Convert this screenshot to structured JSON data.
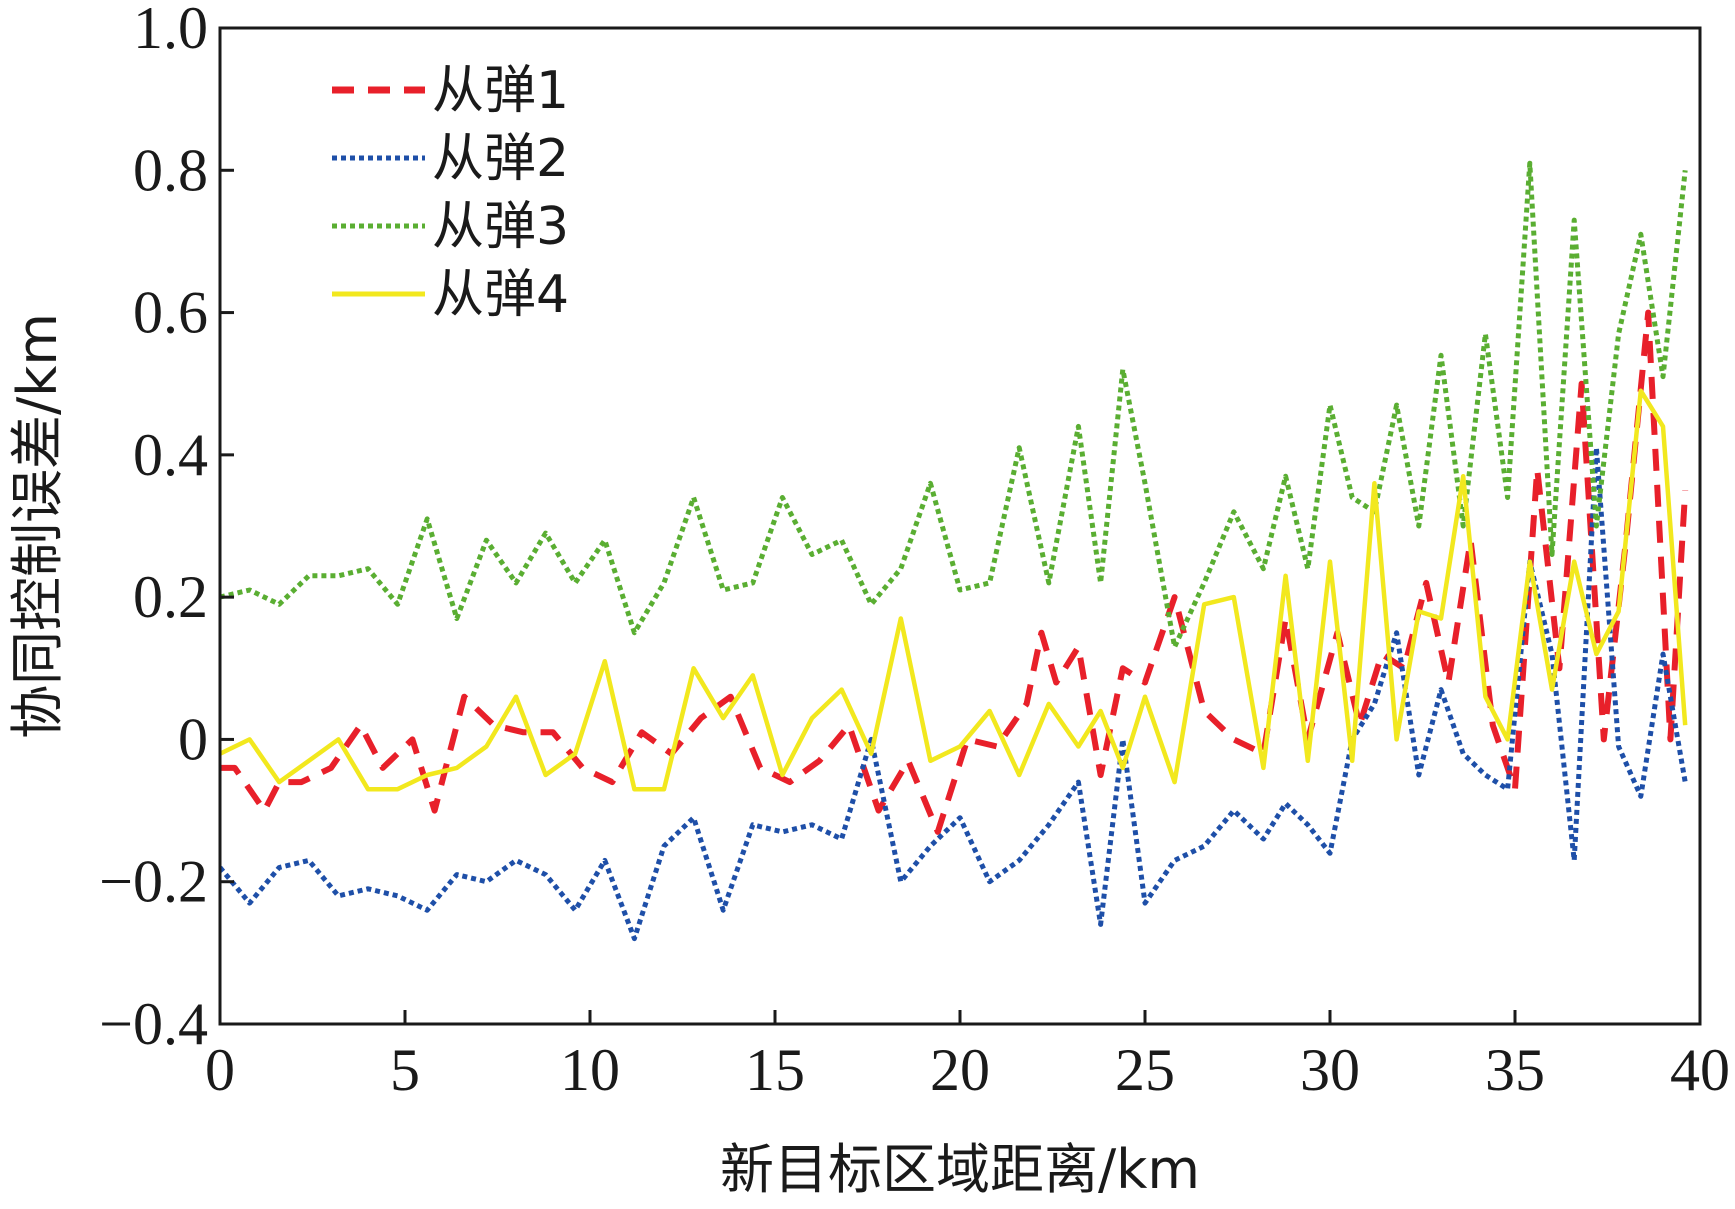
{
  "chart_data": {
    "type": "line",
    "xlabel": "新目标区域距离/km",
    "ylabel": "协同控制误差/km",
    "xlim": [
      0,
      40
    ],
    "ylim": [
      -0.4,
      1.0
    ],
    "xticks": [
      0,
      5,
      10,
      15,
      20,
      25,
      30,
      35,
      40
    ],
    "xtick_labels": [
      "0",
      "5",
      "10",
      "15",
      "20",
      "25",
      "30",
      "35",
      "40"
    ],
    "yticks": [
      -0.4,
      -0.2,
      0,
      0.2,
      0.4,
      0.6,
      0.8,
      1.0
    ],
    "ytick_labels": [
      "−0.4",
      "−0.2",
      "0",
      "0.2",
      "0.4",
      "0.6",
      "0.8",
      "1.0"
    ],
    "grid": false,
    "legend_position": "top-left",
    "series": [
      {
        "name": "从弹1",
        "color": "#e8202a",
        "style": "dashed",
        "x": [
          0,
          0.4,
          1.2,
          1.6,
          2.2,
          3,
          3.8,
          4.4,
          5.2,
          5.8,
          6.6,
          7.4,
          8.2,
          9,
          9.8,
          10.6,
          11.4,
          12.2,
          13,
          13.8,
          14.6,
          15.4,
          16.2,
          17,
          17.8,
          18.6,
          19.4,
          20.2,
          21,
          21.8,
          22.2,
          22.6,
          23.2,
          23.8,
          24.4,
          25,
          25.8,
          26.6,
          27.4,
          28.2,
          28.8,
          29.4,
          30.2,
          30.8,
          31.4,
          32,
          32.6,
          33.2,
          33.8,
          34.4,
          35,
          35.6,
          36.2,
          36.8,
          37.4,
          38,
          38.6,
          39.2,
          39.6
        ],
        "y": [
          -0.04,
          -0.04,
          -0.1,
          -0.06,
          -0.06,
          -0.04,
          0.02,
          -0.04,
          0,
          -0.1,
          0.06,
          0.02,
          0.01,
          0.01,
          -0.04,
          -0.06,
          0.01,
          -0.02,
          0.03,
          0.06,
          -0.04,
          -0.06,
          -0.03,
          0.02,
          -0.1,
          -0.03,
          -0.13,
          0.0,
          -0.01,
          0.05,
          0.15,
          0.08,
          0.13,
          -0.05,
          0.1,
          0.08,
          0.2,
          0.04,
          0.0,
          -0.02,
          0.17,
          0.0,
          0.15,
          0.02,
          0.12,
          0.1,
          0.22,
          0.08,
          0.28,
          0.02,
          -0.07,
          0.38,
          0.1,
          0.5,
          0.0,
          0.28,
          0.6,
          0.0,
          0.35
        ]
      },
      {
        "name": "从弹2",
        "color": "#1e4fa8",
        "style": "dotted",
        "x": [
          0,
          0.8,
          1.6,
          2.4,
          3.2,
          4,
          4.8,
          5.6,
          6.4,
          7.2,
          8,
          8.8,
          9.6,
          10.4,
          11.2,
          12,
          12.8,
          13.6,
          14.4,
          15.2,
          16,
          16.8,
          17.6,
          18.4,
          19.2,
          20,
          20.8,
          21.6,
          22.4,
          23.2,
          23.8,
          24.4,
          25,
          25.8,
          26.6,
          27.4,
          28.2,
          28.8,
          29.4,
          30,
          30.6,
          31.2,
          31.8,
          32.4,
          33,
          33.6,
          34.2,
          34.8,
          35.4,
          36,
          36.6,
          37.2,
          37.8,
          38.4,
          39,
          39.6
        ],
        "y": [
          -0.18,
          -0.23,
          -0.18,
          -0.17,
          -0.22,
          -0.21,
          -0.22,
          -0.24,
          -0.19,
          -0.2,
          -0.17,
          -0.19,
          -0.24,
          -0.17,
          -0.28,
          -0.15,
          -0.11,
          -0.24,
          -0.12,
          -0.13,
          -0.12,
          -0.14,
          0.0,
          -0.2,
          -0.15,
          -0.11,
          -0.2,
          -0.17,
          -0.12,
          -0.06,
          -0.26,
          0.0,
          -0.23,
          -0.17,
          -0.15,
          -0.1,
          -0.14,
          -0.09,
          -0.12,
          -0.16,
          0.0,
          0.05,
          0.15,
          -0.05,
          0.07,
          -0.02,
          -0.05,
          -0.07,
          0.25,
          0.12,
          -0.17,
          0.41,
          -0.01,
          -0.08,
          0.12,
          -0.06
        ]
      },
      {
        "name": "从弹3",
        "color": "#5aae32",
        "style": "dotted",
        "x": [
          0,
          0.8,
          1.6,
          2.4,
          3.2,
          4,
          4.8,
          5.6,
          6.4,
          7.2,
          8,
          8.8,
          9.6,
          10.4,
          11.2,
          12,
          12.8,
          13.6,
          14.4,
          15.2,
          16,
          16.8,
          17.6,
          18.4,
          19.2,
          20,
          20.8,
          21.6,
          22.4,
          23.2,
          23.8,
          24.4,
          25,
          25.8,
          26.6,
          27.4,
          28.2,
          28.8,
          29.4,
          30,
          30.6,
          31.2,
          31.8,
          32.4,
          33,
          33.6,
          34.2,
          34.8,
          35.4,
          36,
          36.6,
          37.2,
          37.8,
          38.4,
          39,
          39.6
        ],
        "y": [
          0.2,
          0.21,
          0.19,
          0.23,
          0.23,
          0.24,
          0.19,
          0.31,
          0.17,
          0.28,
          0.22,
          0.29,
          0.22,
          0.28,
          0.15,
          0.22,
          0.34,
          0.21,
          0.22,
          0.34,
          0.26,
          0.28,
          0.19,
          0.24,
          0.36,
          0.21,
          0.22,
          0.41,
          0.22,
          0.44,
          0.22,
          0.52,
          0.36,
          0.13,
          0.22,
          0.32,
          0.24,
          0.37,
          0.24,
          0.47,
          0.34,
          0.32,
          0.47,
          0.3,
          0.54,
          0.3,
          0.57,
          0.34,
          0.81,
          0.26,
          0.73,
          0.3,
          0.57,
          0.71,
          0.51,
          0.8
        ]
      },
      {
        "name": "从弹4",
        "color": "#f2e81e",
        "style": "solid",
        "x": [
          0,
          0.8,
          1.6,
          2.4,
          3.2,
          4,
          4.8,
          5.6,
          6.4,
          7.2,
          8,
          8.8,
          9.6,
          10.4,
          11.2,
          12,
          12.8,
          13.6,
          14.4,
          15.2,
          16,
          16.8,
          17.6,
          18.4,
          19.2,
          20,
          20.8,
          21.6,
          22.4,
          23.2,
          23.8,
          24.4,
          25,
          25.8,
          26.6,
          27.4,
          28.2,
          28.8,
          29.4,
          30,
          30.6,
          31.2,
          31.8,
          32.4,
          33,
          33.6,
          34.2,
          34.8,
          35.4,
          36,
          36.6,
          37.2,
          37.8,
          38.4,
          39,
          39.6
        ],
        "y": [
          -0.02,
          0.0,
          -0.06,
          -0.03,
          0.0,
          -0.07,
          -0.07,
          -0.05,
          -0.04,
          -0.01,
          0.06,
          -0.05,
          -0.02,
          0.11,
          -0.07,
          -0.07,
          0.1,
          0.03,
          0.09,
          -0.05,
          0.03,
          0.07,
          -0.02,
          0.17,
          -0.03,
          -0.01,
          0.04,
          -0.05,
          0.05,
          -0.01,
          0.04,
          -0.04,
          0.06,
          -0.06,
          0.19,
          0.2,
          -0.04,
          0.23,
          -0.03,
          0.25,
          -0.03,
          0.36,
          0.0,
          0.18,
          0.17,
          0.37,
          0.06,
          0.0,
          0.25,
          0.07,
          0.25,
          0.12,
          0.18,
          0.49,
          0.44,
          0.02
        ]
      }
    ]
  }
}
